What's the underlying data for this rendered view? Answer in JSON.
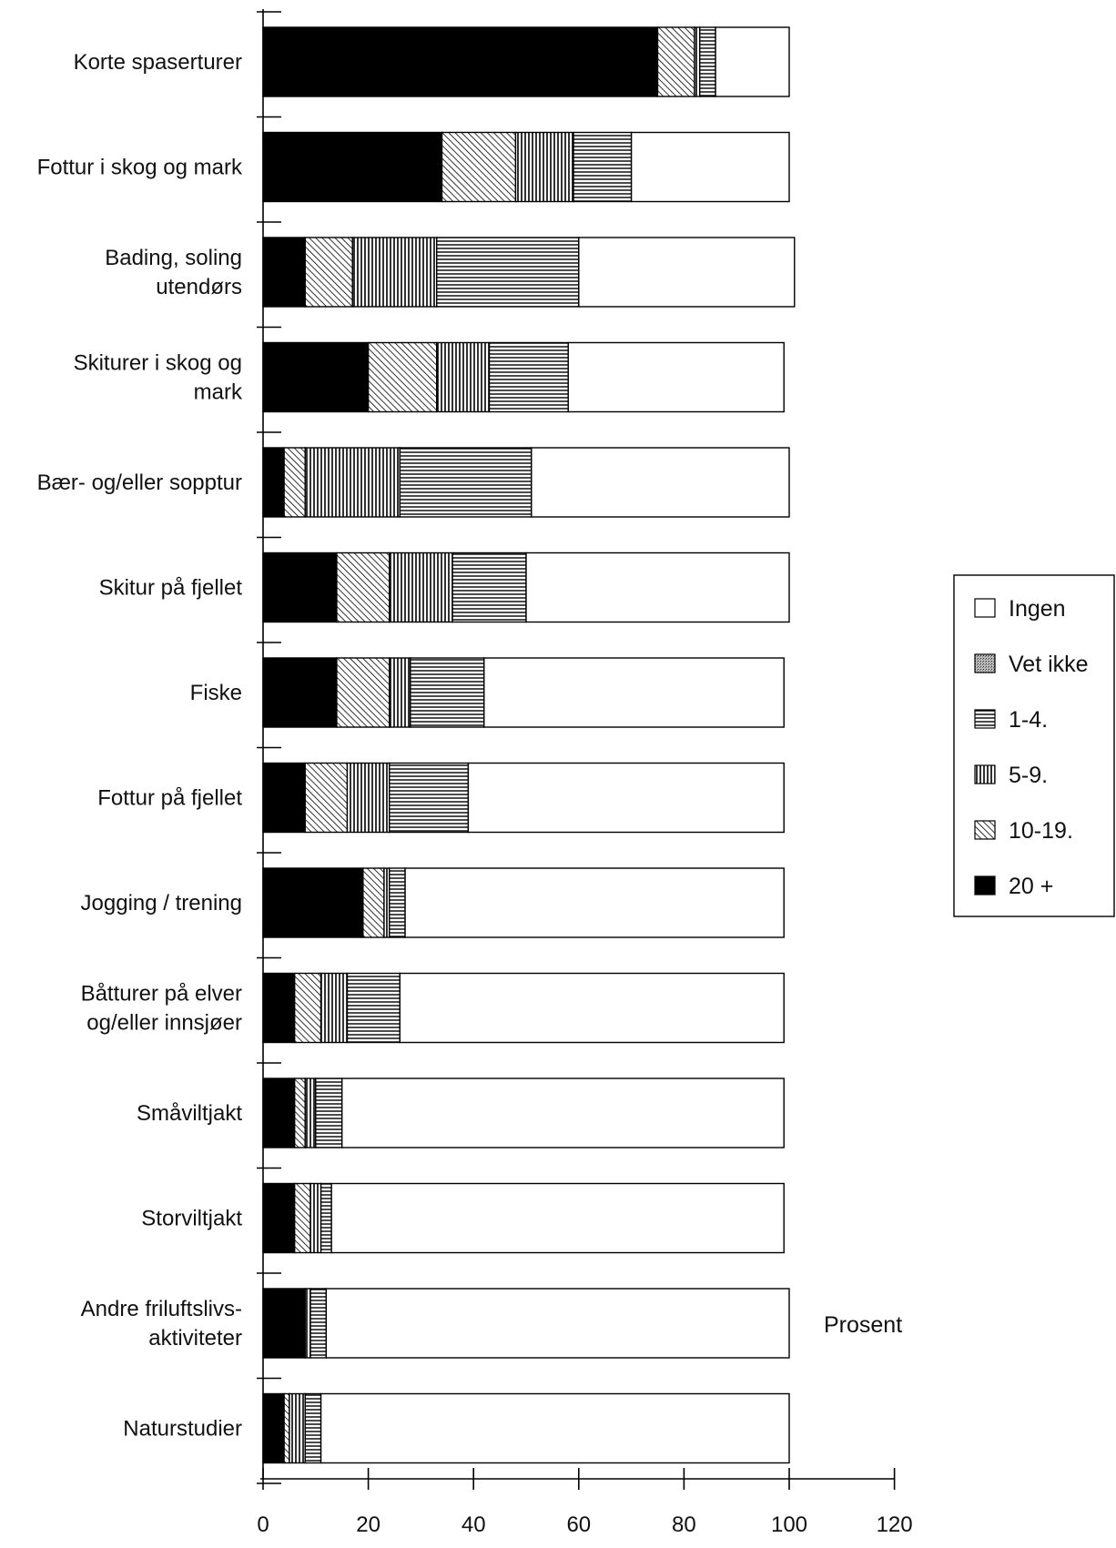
{
  "chart_data": {
    "type": "bar",
    "orientation": "horizontal",
    "stacked": true,
    "xlabel": "Prosent",
    "xlim": [
      0,
      120
    ],
    "xticks": [
      0,
      20,
      40,
      60,
      80,
      100,
      120
    ],
    "legend_position": "right",
    "categories": [
      [
        "Korte spaserturer"
      ],
      [
        "Fottur i skog og mark"
      ],
      [
        "Bading, soling",
        "utendørs"
      ],
      [
        "Skiturer i skog og",
        "mark"
      ],
      [
        "Bær- og/eller sopptur"
      ],
      [
        "Skitur på fjellet"
      ],
      [
        "Fiske"
      ],
      [
        "Fottur på fjellet"
      ],
      [
        "Jogging / trening"
      ],
      [
        "Båtturer på elver",
        "og/eller innsjøer"
      ],
      [
        "Småviltjakt"
      ],
      [
        "Storviltjakt"
      ],
      [
        "Andre friluftslivs-",
        "aktiviteter"
      ],
      [
        "Naturstudier"
      ]
    ],
    "series": [
      {
        "name": "20 +",
        "pattern": "solid",
        "values": [
          75,
          34,
          8,
          20,
          4,
          14,
          14,
          8,
          19,
          6,
          6,
          6,
          8,
          4
        ]
      },
      {
        "name": "10-19.",
        "pattern": "diagonal",
        "values": [
          7,
          14,
          9,
          13,
          4,
          10,
          10,
          8,
          4,
          5,
          2,
          3,
          0,
          1
        ]
      },
      {
        "name": "5-9.",
        "pattern": "vertical",
        "values": [
          1,
          11,
          16,
          10,
          18,
          12,
          4,
          8,
          1,
          5,
          2,
          2,
          1,
          3
        ]
      },
      {
        "name": "1-4.",
        "pattern": "horizontal",
        "values": [
          3,
          11,
          27,
          15,
          25,
          14,
          14,
          15,
          3,
          10,
          5,
          2,
          3,
          3
        ]
      },
      {
        "name": "Vet ikke",
        "pattern": "dotted",
        "values": [
          0,
          0,
          0,
          0,
          0,
          0,
          0,
          0,
          0,
          0,
          0,
          0,
          0,
          0
        ]
      },
      {
        "name": "Ingen",
        "pattern": "white",
        "values": [
          14,
          30,
          41,
          41,
          49,
          50,
          57,
          60,
          72,
          73,
          84,
          86,
          88,
          89
        ]
      }
    ],
    "legend_order": [
      "Ingen",
      "Vet ikke",
      "1-4.",
      "5-9.",
      "10-19.",
      "20 +"
    ],
    "colors": {
      "ink": "#000000",
      "fill": "#ffffff"
    }
  }
}
